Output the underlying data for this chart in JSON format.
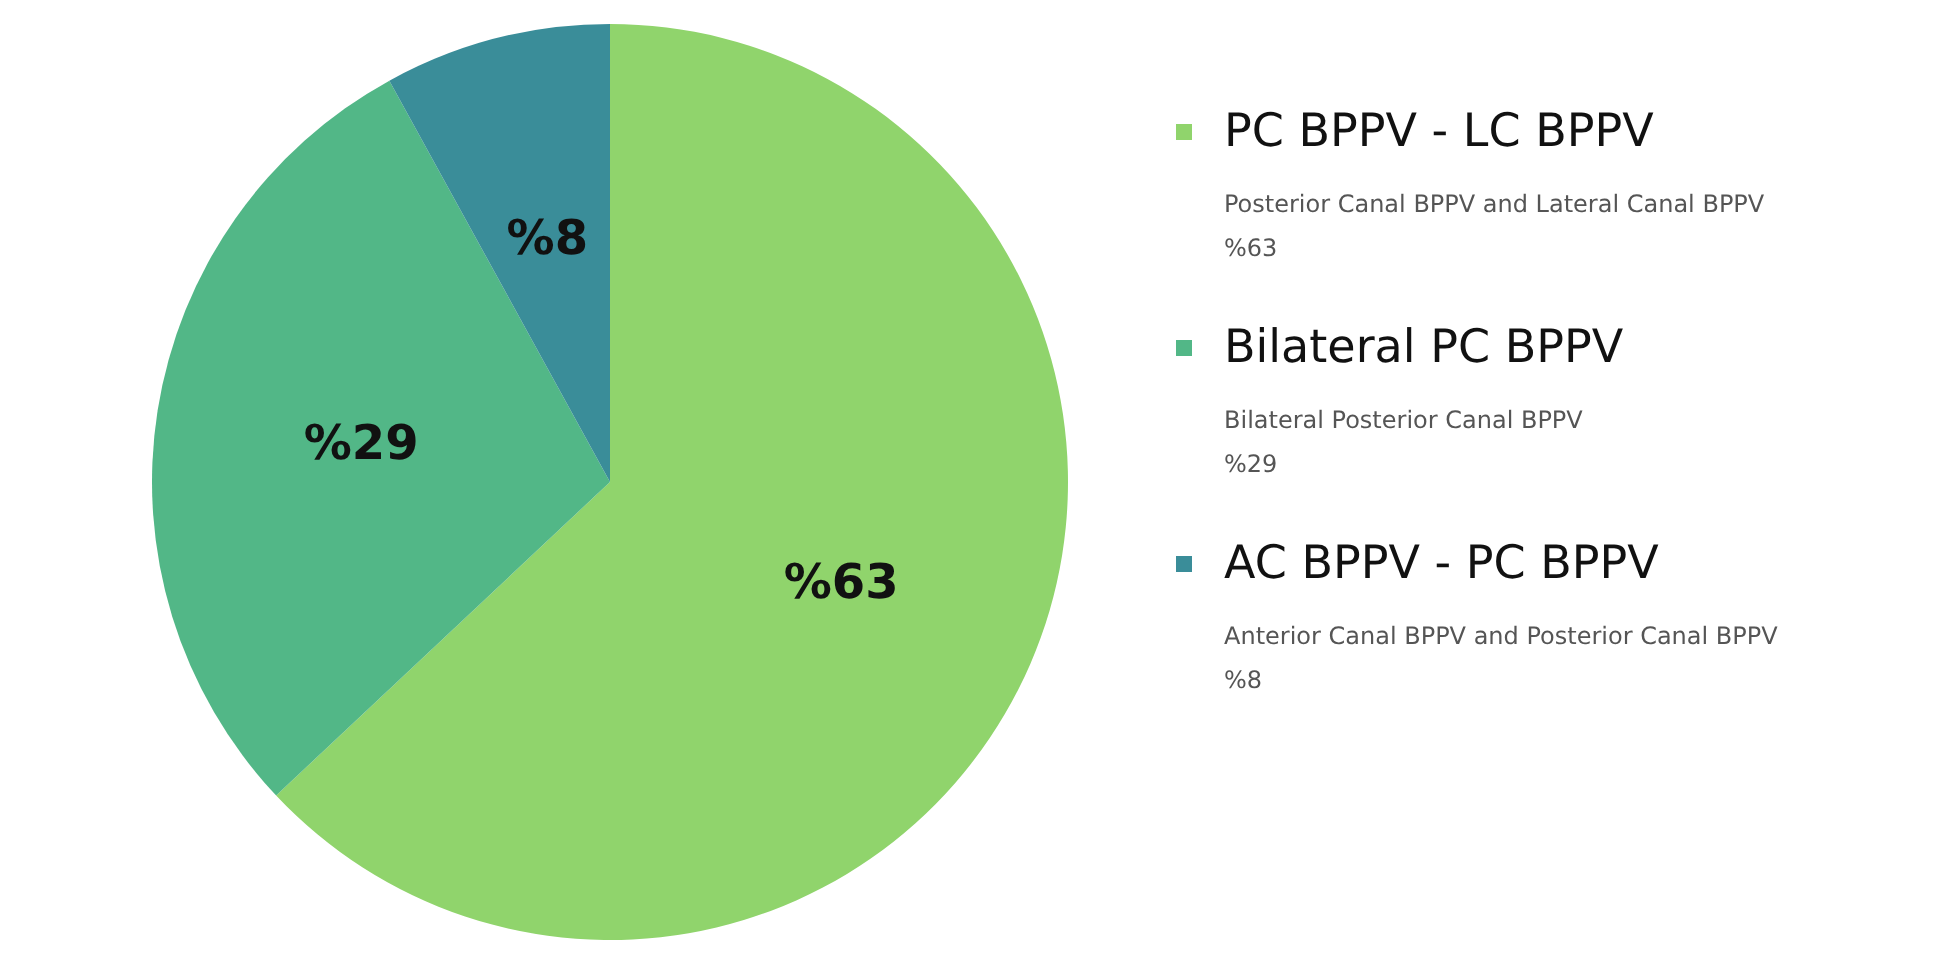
{
  "chart_data": {
    "type": "pie",
    "categories": [
      "PC BPPV - LC BPPV",
      "Bilateral PC BPPV",
      "AC BPPV - PC BPPV"
    ],
    "values": [
      63,
      29,
      8
    ],
    "colors": [
      "#90d46c",
      "#52b787",
      "#3a8d99"
    ],
    "value_labels": [
      "%63",
      "%29",
      "%8"
    ],
    "annotations": [
      "Posterior Canal BPPV and Lateral Canal BPPV",
      "Bilateral Posterior Canal BPPV",
      "Anterior Canal BPPV and Posterior Canal BPPV"
    ],
    "legend": "right"
  }
}
